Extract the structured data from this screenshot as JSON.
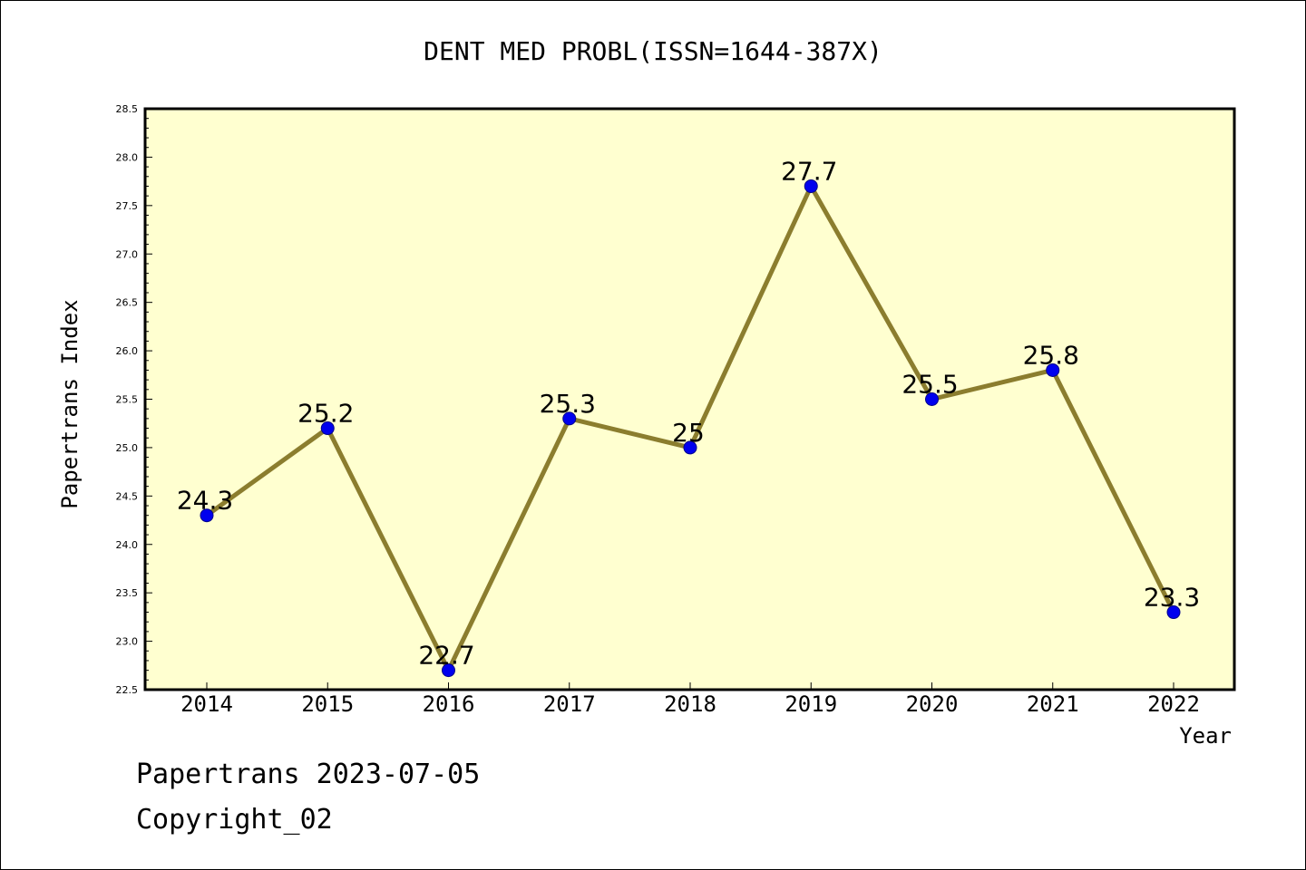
{
  "chart_data": {
    "type": "line",
    "title": "DENT MED PROBL(ISSN=1644-387X)",
    "xlabel": "Year",
    "ylabel": "Papertrans Index",
    "categories": [
      "2014",
      "2015",
      "2016",
      "2017",
      "2018",
      "2019",
      "2020",
      "2021",
      "2022"
    ],
    "series": [
      {
        "values": [
          24.3,
          25.2,
          22.7,
          25.3,
          25.0,
          27.7,
          25.5,
          25.8,
          23.3
        ]
      }
    ],
    "data_labels": [
      "24.3",
      "25.2",
      "22.7",
      "25.3",
      "25",
      "27.7",
      "25.5",
      "25.8",
      "23.3"
    ],
    "ylim": [
      22.5,
      28.5
    ],
    "yticks": [
      "22.5",
      "23.0",
      "23.5",
      "24.0",
      "24.5",
      "25.0",
      "25.5",
      "26.0",
      "26.5",
      "27.0",
      "27.5",
      "28.0",
      "28.5"
    ],
    "grid": false,
    "legend": "none",
    "colors": {
      "plot_background": "#ffffd0",
      "line": "#8b7d2e",
      "marker": "#0000ee",
      "axis": "#000000"
    }
  },
  "footer": {
    "line1": "Papertrans 2023-07-05",
    "line2": "Copyright_02"
  }
}
